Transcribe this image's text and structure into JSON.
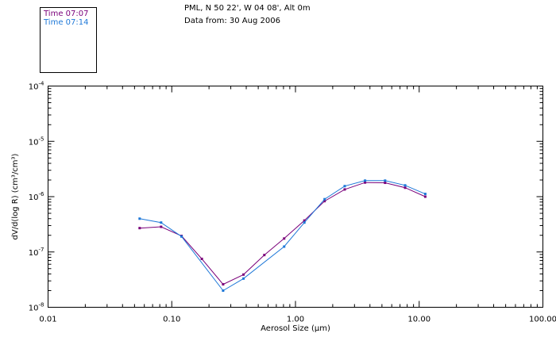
{
  "header": {
    "line1": "PML, N 50 22', W 04 08', Alt 0m",
    "line2": "Data from: 30 Aug 2006"
  },
  "legend": {
    "entries": [
      {
        "label": "Time 07:07",
        "color": "#7a007a"
      },
      {
        "label": "Time 07:14",
        "color": "#1e78d8"
      }
    ]
  },
  "chart_data": {
    "type": "line",
    "xscale": "log",
    "yscale": "log",
    "xlim": [
      0.01,
      100
    ],
    "ylim": [
      1e-08,
      0.0001
    ],
    "xlabel": "Aerosol Size (µm)",
    "ylabel": "dV/d(log R) (cm³/cm³)",
    "xticks": [
      {
        "value": 0.01,
        "label": "0.01"
      },
      {
        "value": 0.1,
        "label": "0.10"
      },
      {
        "value": 1,
        "label": "1.00"
      },
      {
        "value": 10,
        "label": "10.00"
      },
      {
        "value": 100,
        "label": "100.00"
      }
    ],
    "yticks": [
      {
        "value": 1e-08,
        "base": "10",
        "exp": "-8"
      },
      {
        "value": 1e-07,
        "base": "10",
        "exp": "-7"
      },
      {
        "value": 1e-06,
        "base": "10",
        "exp": "-6"
      },
      {
        "value": 1e-05,
        "base": "10",
        "exp": "-5"
      },
      {
        "value": 0.0001,
        "base": "10",
        "exp": "-4"
      }
    ],
    "grid": false,
    "series": [
      {
        "name": "Time 07:07",
        "color": "#7a007a",
        "x": [
          0.055,
          0.082,
          0.12,
          0.175,
          0.26,
          0.38,
          0.56,
          0.81,
          1.18,
          1.72,
          2.5,
          3.65,
          5.3,
          7.7,
          11.2
        ],
        "y": [
          2.7e-07,
          2.85e-07,
          1.95e-07,
          7.5e-08,
          2.6e-08,
          3.9e-08,
          8.8e-08,
          1.75e-07,
          3.7e-07,
          8.3e-07,
          1.35e-06,
          1.8e-06,
          1.78e-06,
          1.45e-06,
          1e-06
        ]
      },
      {
        "name": "Time 07:14",
        "color": "#1e78d8",
        "x": [
          0.055,
          0.082,
          0.12,
          0.26,
          0.38,
          0.81,
          1.18,
          1.72,
          2.5,
          3.65,
          5.3,
          7.7,
          11.2
        ],
        "y": [
          4e-07,
          3.4e-07,
          1.9e-07,
          2e-08,
          3.3e-08,
          1.25e-07,
          3.4e-07,
          9e-07,
          1.55e-06,
          1.95e-06,
          1.95e-06,
          1.6e-06,
          1.12e-06
        ]
      }
    ]
  }
}
